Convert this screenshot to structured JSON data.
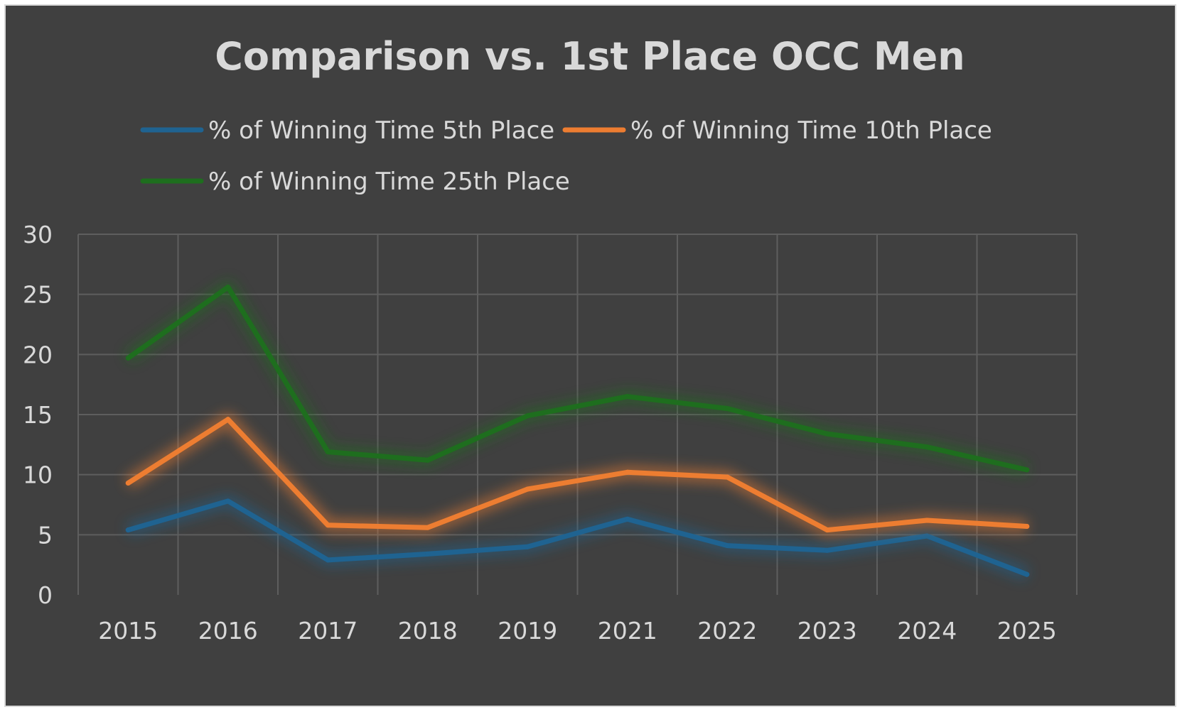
{
  "chart_data": {
    "type": "line",
    "title": "Comparison vs. 1st Place OCC Men",
    "xlabel": "",
    "ylabel": "",
    "categories": [
      "2015",
      "2016",
      "2017",
      "2018",
      "2019",
      "2021",
      "2022",
      "2023",
      "2024",
      "2025"
    ],
    "ylim": [
      0,
      30
    ],
    "yticks": [
      0,
      5,
      10,
      15,
      20,
      25,
      30
    ],
    "grid": true,
    "legend_position": "top",
    "series": [
      {
        "name": "% of Winning Time 5th Place",
        "color": "#1f6391",
        "values": [
          5.4,
          7.8,
          2.9,
          3.4,
          4.0,
          6.3,
          4.1,
          3.7,
          4.9,
          1.7
        ]
      },
      {
        "name": "% of Winning Time 10th Place",
        "color": "#ed7d31",
        "values": [
          9.3,
          14.6,
          5.8,
          5.6,
          8.8,
          10.2,
          9.8,
          5.4,
          6.2,
          5.7
        ]
      },
      {
        "name": "% of Winning Time 25th Place",
        "color": "#1e6e1e",
        "values": [
          19.7,
          25.6,
          11.9,
          11.2,
          14.9,
          16.5,
          15.5,
          13.4,
          12.3,
          10.4
        ]
      }
    ]
  }
}
